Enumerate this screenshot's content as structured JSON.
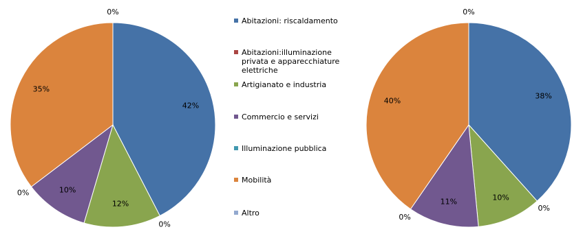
{
  "chart_data": [
    {
      "type": "pie",
      "categories": [
        "Abitazioni: riscaldamento",
        "Abitazioni:illuminazione privata e apparecchiature elettriche",
        "Artigianato e industria",
        "Commercio e servizi",
        "Illuminazione pubblica",
        "Mobilità",
        "Altro"
      ],
      "colors": [
        "#4572a7",
        "#aa4643",
        "#89a54e",
        "#71588f",
        "#4198af",
        "#db843d",
        "#93a9cf"
      ],
      "values": [
        42,
        0,
        12,
        10,
        0,
        35,
        0
      ],
      "value_labels": [
        "42%",
        "0%",
        "12%",
        "10%",
        "0%",
        "35%",
        "0%"
      ]
    },
    {
      "type": "pie",
      "values": [
        38,
        0,
        10,
        11,
        0,
        40,
        0
      ],
      "value_labels": [
        "38%",
        "0%",
        "10%",
        "11%",
        "0%",
        "40%",
        "0%"
      ]
    }
  ]
}
